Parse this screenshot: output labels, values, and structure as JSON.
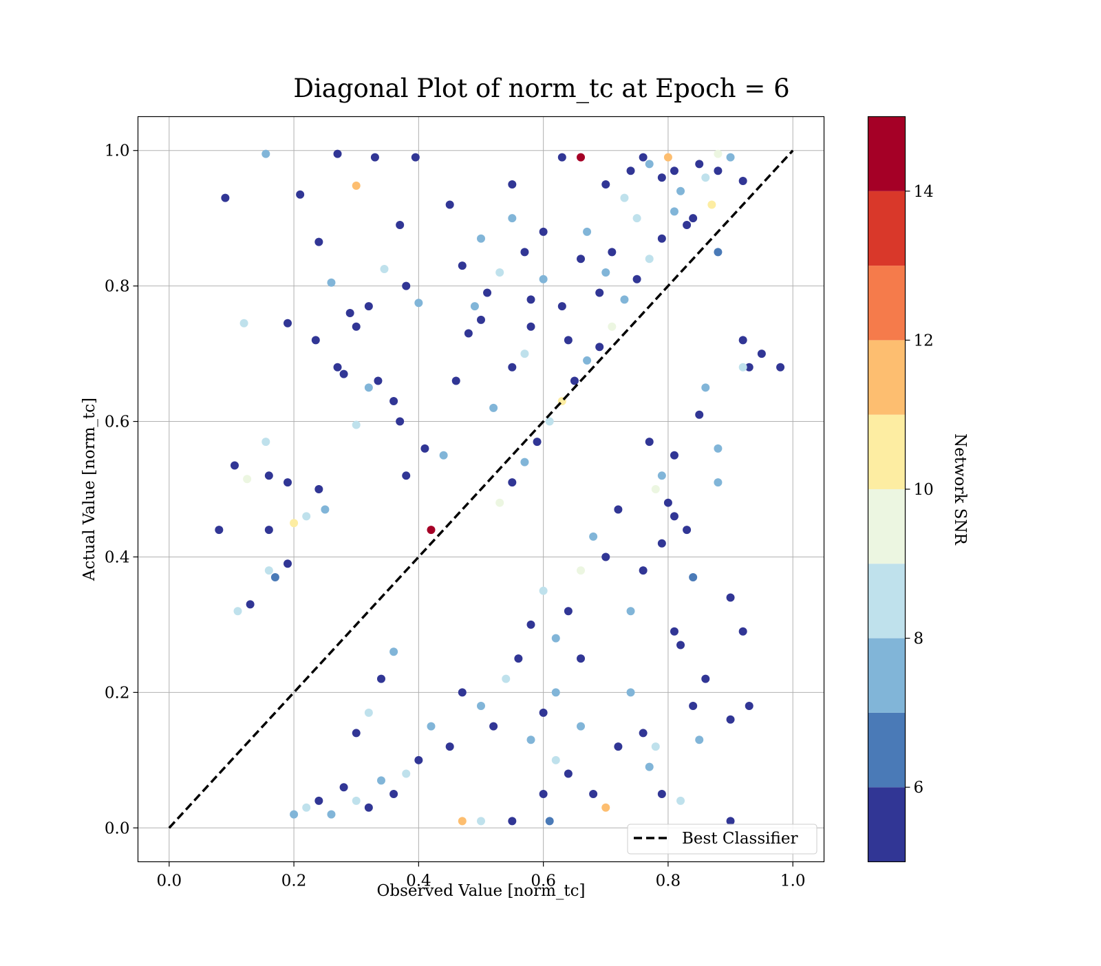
{
  "chart_data": {
    "type": "scatter",
    "title": "Diagonal Plot of norm_tc at Epoch = 6",
    "xlabel": "Observed Value [norm_tc]",
    "ylabel": "Actual Value [norm_tc]",
    "xlim": [
      -0.05,
      1.05
    ],
    "ylim": [
      -0.05,
      1.05
    ],
    "x_ticks": [
      "0.0",
      "0.2",
      "0.4",
      "0.6",
      "0.8",
      "1.0"
    ],
    "y_ticks": [
      "0.0",
      "0.2",
      "0.4",
      "0.6",
      "0.8",
      "1.0"
    ],
    "grid": true,
    "reference_line": {
      "label": "Best Classifier",
      "x": [
        0.0,
        1.0
      ],
      "y": [
        0.0,
        1.0
      ],
      "style": "dashed",
      "color": "#000000"
    },
    "legend": {
      "entries": [
        "Best Classifier"
      ],
      "placement": "lower-right"
    },
    "colorbar": {
      "label": "Network SNR",
      "range": [
        5,
        15
      ],
      "ticks": [
        "6",
        "8",
        "10",
        "12",
        "14"
      ],
      "bins": [
        {
          "from": 5,
          "to": 6,
          "color": "#313695"
        },
        {
          "from": 6,
          "to": 7,
          "color": "#4a7ab7"
        },
        {
          "from": 7,
          "to": 8,
          "color": "#81b5d8"
        },
        {
          "from": 8,
          "to": 9,
          "color": "#bfe1ec"
        },
        {
          "from": 9,
          "to": 10,
          "color": "#ecf6e1"
        },
        {
          "from": 10,
          "to": 11,
          "color": "#fdeda2"
        },
        {
          "from": 11,
          "to": 12,
          "color": "#fdbe70"
        },
        {
          "from": 12,
          "to": 13,
          "color": "#f57b4b"
        },
        {
          "from": 13,
          "to": 14,
          "color": "#d9382a"
        },
        {
          "from": 14,
          "to": 15,
          "color": "#a50026"
        }
      ]
    },
    "series": [
      {
        "value_field": "snr",
        "points": [
          [
            0.09,
            0.93,
            5.5
          ],
          [
            0.155,
            0.995,
            7.2
          ],
          [
            0.27,
            0.995,
            5.3
          ],
          [
            0.21,
            0.935,
            5.4
          ],
          [
            0.3,
            0.948,
            11.5
          ],
          [
            0.08,
            0.44,
            5.6
          ],
          [
            0.105,
            0.535,
            5.3
          ],
          [
            0.12,
            0.745,
            8.3
          ],
          [
            0.19,
            0.745,
            5.4
          ],
          [
            0.235,
            0.72,
            5.5
          ],
          [
            0.24,
            0.865,
            5.3
          ],
          [
            0.37,
            0.89,
            5.5
          ],
          [
            0.395,
            0.99,
            5.4
          ],
          [
            0.33,
            0.99,
            5.3
          ],
          [
            0.26,
            0.805,
            7.4
          ],
          [
            0.155,
            0.57,
            8.0
          ],
          [
            0.16,
            0.52,
            5.4
          ],
          [
            0.19,
            0.51,
            5.6
          ],
          [
            0.125,
            0.515,
            9.5
          ],
          [
            0.3,
            0.595,
            8.6
          ],
          [
            0.345,
            0.825,
            8.6
          ],
          [
            0.38,
            0.8,
            5.5
          ],
          [
            0.4,
            0.775,
            7.6
          ],
          [
            0.335,
            0.66,
            5.5
          ],
          [
            0.42,
            0.44,
            14.6
          ],
          [
            0.55,
            0.95,
            5.4
          ],
          [
            0.6,
            0.88,
            5.6
          ],
          [
            0.63,
            0.99,
            5.3
          ],
          [
            0.66,
            0.99,
            14.8
          ],
          [
            0.7,
            0.95,
            5.5
          ],
          [
            0.76,
            0.99,
            5.4
          ],
          [
            0.88,
            0.995,
            9.7
          ],
          [
            0.92,
            0.955,
            5.4
          ],
          [
            0.82,
            0.94,
            7.6
          ],
          [
            0.84,
            0.9,
            5.5
          ],
          [
            0.5,
            0.87,
            7.9
          ],
          [
            0.45,
            0.92,
            5.5
          ],
          [
            0.58,
            0.78,
            5.6
          ],
          [
            0.7,
            0.82,
            7.6
          ],
          [
            0.75,
            0.9,
            8.5
          ],
          [
            0.88,
            0.85,
            6.5
          ],
          [
            0.93,
            0.68,
            5.5
          ],
          [
            0.92,
            0.72,
            5.6
          ],
          [
            0.86,
            0.65,
            7.4
          ],
          [
            0.95,
            0.7,
            5.4
          ],
          [
            0.98,
            0.68,
            5.6
          ],
          [
            0.88,
            0.56,
            7.7
          ],
          [
            0.92,
            0.68,
            8.5
          ],
          [
            0.85,
            0.61,
            5.5
          ],
          [
            0.81,
            0.55,
            5.5
          ],
          [
            0.79,
            0.42,
            5.4
          ],
          [
            0.83,
            0.44,
            5.4
          ],
          [
            0.8,
            0.48,
            5.6
          ],
          [
            0.84,
            0.37,
            6.7
          ],
          [
            0.88,
            0.51,
            7.7
          ],
          [
            0.9,
            0.34,
            5.5
          ],
          [
            0.92,
            0.29,
            5.5
          ],
          [
            0.93,
            0.18,
            5.5
          ],
          [
            0.9,
            0.16,
            5.4
          ],
          [
            0.86,
            0.22,
            5.6
          ],
          [
            0.84,
            0.18,
            5.5
          ],
          [
            0.82,
            0.27,
            5.4
          ],
          [
            0.81,
            0.29,
            5.6
          ],
          [
            0.85,
            0.13,
            7.7
          ],
          [
            0.9,
            0.01,
            5.6
          ],
          [
            0.82,
            0.04,
            8.5
          ],
          [
            0.79,
            0.05,
            5.3
          ],
          [
            0.7,
            0.03,
            11.4
          ],
          [
            0.74,
            0.2,
            7.6
          ],
          [
            0.76,
            0.14,
            5.5
          ],
          [
            0.78,
            0.12,
            8.5
          ],
          [
            0.77,
            0.09,
            7.2
          ],
          [
            0.72,
            0.12,
            5.5
          ],
          [
            0.66,
            0.25,
            5.4
          ],
          [
            0.62,
            0.2,
            7.6
          ],
          [
            0.6,
            0.05,
            5.6
          ],
          [
            0.61,
            0.01,
            6.7
          ],
          [
            0.55,
            0.01,
            5.5
          ],
          [
            0.5,
            0.01,
            8.6
          ],
          [
            0.47,
            0.01,
            11.6
          ],
          [
            0.7,
            0.4,
            5.5
          ],
          [
            0.72,
            0.47,
            5.3
          ],
          [
            0.76,
            0.38,
            5.6
          ],
          [
            0.74,
            0.32,
            7.6
          ],
          [
            0.77,
            0.57,
            5.5
          ],
          [
            0.78,
            0.5,
            9.6
          ],
          [
            0.79,
            0.52,
            7.6
          ],
          [
            0.81,
            0.46,
            5.5
          ],
          [
            0.13,
            0.33,
            5.5
          ],
          [
            0.11,
            0.32,
            8.2
          ],
          [
            0.17,
            0.37,
            6.5
          ],
          [
            0.16,
            0.44,
            5.5
          ],
          [
            0.16,
            0.38,
            8.8
          ],
          [
            0.19,
            0.39,
            5.5
          ],
          [
            0.2,
            0.45,
            10.3
          ],
          [
            0.22,
            0.46,
            8.5
          ],
          [
            0.24,
            0.5,
            5.5
          ],
          [
            0.25,
            0.47,
            7.6
          ],
          [
            0.27,
            0.68,
            5.5
          ],
          [
            0.28,
            0.67,
            5.6
          ],
          [
            0.29,
            0.76,
            5.4
          ],
          [
            0.3,
            0.74,
            5.5
          ],
          [
            0.32,
            0.77,
            5.5
          ],
          [
            0.32,
            0.65,
            7.6
          ],
          [
            0.36,
            0.63,
            5.5
          ],
          [
            0.37,
            0.6,
            5.6
          ],
          [
            0.38,
            0.52,
            5.5
          ],
          [
            0.41,
            0.56,
            5.4
          ],
          [
            0.44,
            0.55,
            7.6
          ],
          [
            0.46,
            0.66,
            5.5
          ],
          [
            0.48,
            0.73,
            5.4
          ],
          [
            0.5,
            0.75,
            5.6
          ],
          [
            0.52,
            0.62,
            7.6
          ],
          [
            0.55,
            0.68,
            5.5
          ],
          [
            0.57,
            0.7,
            8.6
          ],
          [
            0.58,
            0.74,
            5.5
          ],
          [
            0.6,
            0.81,
            7.4
          ],
          [
            0.63,
            0.77,
            5.5
          ],
          [
            0.64,
            0.72,
            5.6
          ],
          [
            0.66,
            0.84,
            5.5
          ],
          [
            0.67,
            0.88,
            7.7
          ],
          [
            0.69,
            0.79,
            5.5
          ],
          [
            0.71,
            0.85,
            5.6
          ],
          [
            0.73,
            0.93,
            8.5
          ],
          [
            0.74,
            0.97,
            5.5
          ],
          [
            0.77,
            0.98,
            7.8
          ],
          [
            0.79,
            0.96,
            5.5
          ],
          [
            0.81,
            0.97,
            5.4
          ],
          [
            0.8,
            0.99,
            11.6
          ],
          [
            0.85,
            0.98,
            5.5
          ],
          [
            0.86,
            0.96,
            8.5
          ],
          [
            0.88,
            0.97,
            5.6
          ],
          [
            0.9,
            0.99,
            7.7
          ],
          [
            0.87,
            0.92,
            10.5
          ],
          [
            0.83,
            0.89,
            5.5
          ],
          [
            0.81,
            0.91,
            7.6
          ],
          [
            0.79,
            0.87,
            5.6
          ],
          [
            0.77,
            0.84,
            8.4
          ],
          [
            0.75,
            0.81,
            5.5
          ],
          [
            0.73,
            0.78,
            7.6
          ],
          [
            0.71,
            0.74,
            9.5
          ],
          [
            0.69,
            0.71,
            5.5
          ],
          [
            0.67,
            0.69,
            7.6
          ],
          [
            0.65,
            0.66,
            5.6
          ],
          [
            0.63,
            0.63,
            10.4
          ],
          [
            0.61,
            0.6,
            8.5
          ],
          [
            0.59,
            0.57,
            5.5
          ],
          [
            0.57,
            0.54,
            7.7
          ],
          [
            0.55,
            0.51,
            5.4
          ],
          [
            0.53,
            0.48,
            9.5
          ],
          [
            0.45,
            0.12,
            5.5
          ],
          [
            0.42,
            0.15,
            7.6
          ],
          [
            0.4,
            0.1,
            5.6
          ],
          [
            0.38,
            0.08,
            8.5
          ],
          [
            0.36,
            0.05,
            5.5
          ],
          [
            0.34,
            0.07,
            7.5
          ],
          [
            0.32,
            0.03,
            5.6
          ],
          [
            0.3,
            0.04,
            8.6
          ],
          [
            0.28,
            0.06,
            5.5
          ],
          [
            0.26,
            0.02,
            7.7
          ],
          [
            0.24,
            0.04,
            5.5
          ],
          [
            0.22,
            0.03,
            8.5
          ],
          [
            0.2,
            0.02,
            7.6
          ],
          [
            0.47,
            0.2,
            5.5
          ],
          [
            0.5,
            0.18,
            7.6
          ],
          [
            0.52,
            0.15,
            5.6
          ],
          [
            0.54,
            0.22,
            8.5
          ],
          [
            0.56,
            0.25,
            5.5
          ],
          [
            0.58,
            0.13,
            7.7
          ],
          [
            0.6,
            0.17,
            5.5
          ],
          [
            0.62,
            0.1,
            8.6
          ],
          [
            0.64,
            0.08,
            5.5
          ],
          [
            0.66,
            0.15,
            7.6
          ],
          [
            0.68,
            0.05,
            5.6
          ],
          [
            0.58,
            0.3,
            5.5
          ],
          [
            0.6,
            0.35,
            8.5
          ],
          [
            0.62,
            0.28,
            7.6
          ],
          [
            0.64,
            0.32,
            5.5
          ],
          [
            0.66,
            0.38,
            9.5
          ],
          [
            0.68,
            0.43,
            7.6
          ],
          [
            0.34,
            0.22,
            5.5
          ],
          [
            0.36,
            0.26,
            7.7
          ],
          [
            0.32,
            0.17,
            8.5
          ],
          [
            0.3,
            0.14,
            5.6
          ],
          [
            0.55,
            0.9,
            7.6
          ],
          [
            0.57,
            0.85,
            5.5
          ],
          [
            0.53,
            0.82,
            8.5
          ],
          [
            0.51,
            0.79,
            5.6
          ],
          [
            0.49,
            0.77,
            7.6
          ],
          [
            0.47,
            0.83,
            5.5
          ]
        ]
      }
    ]
  }
}
